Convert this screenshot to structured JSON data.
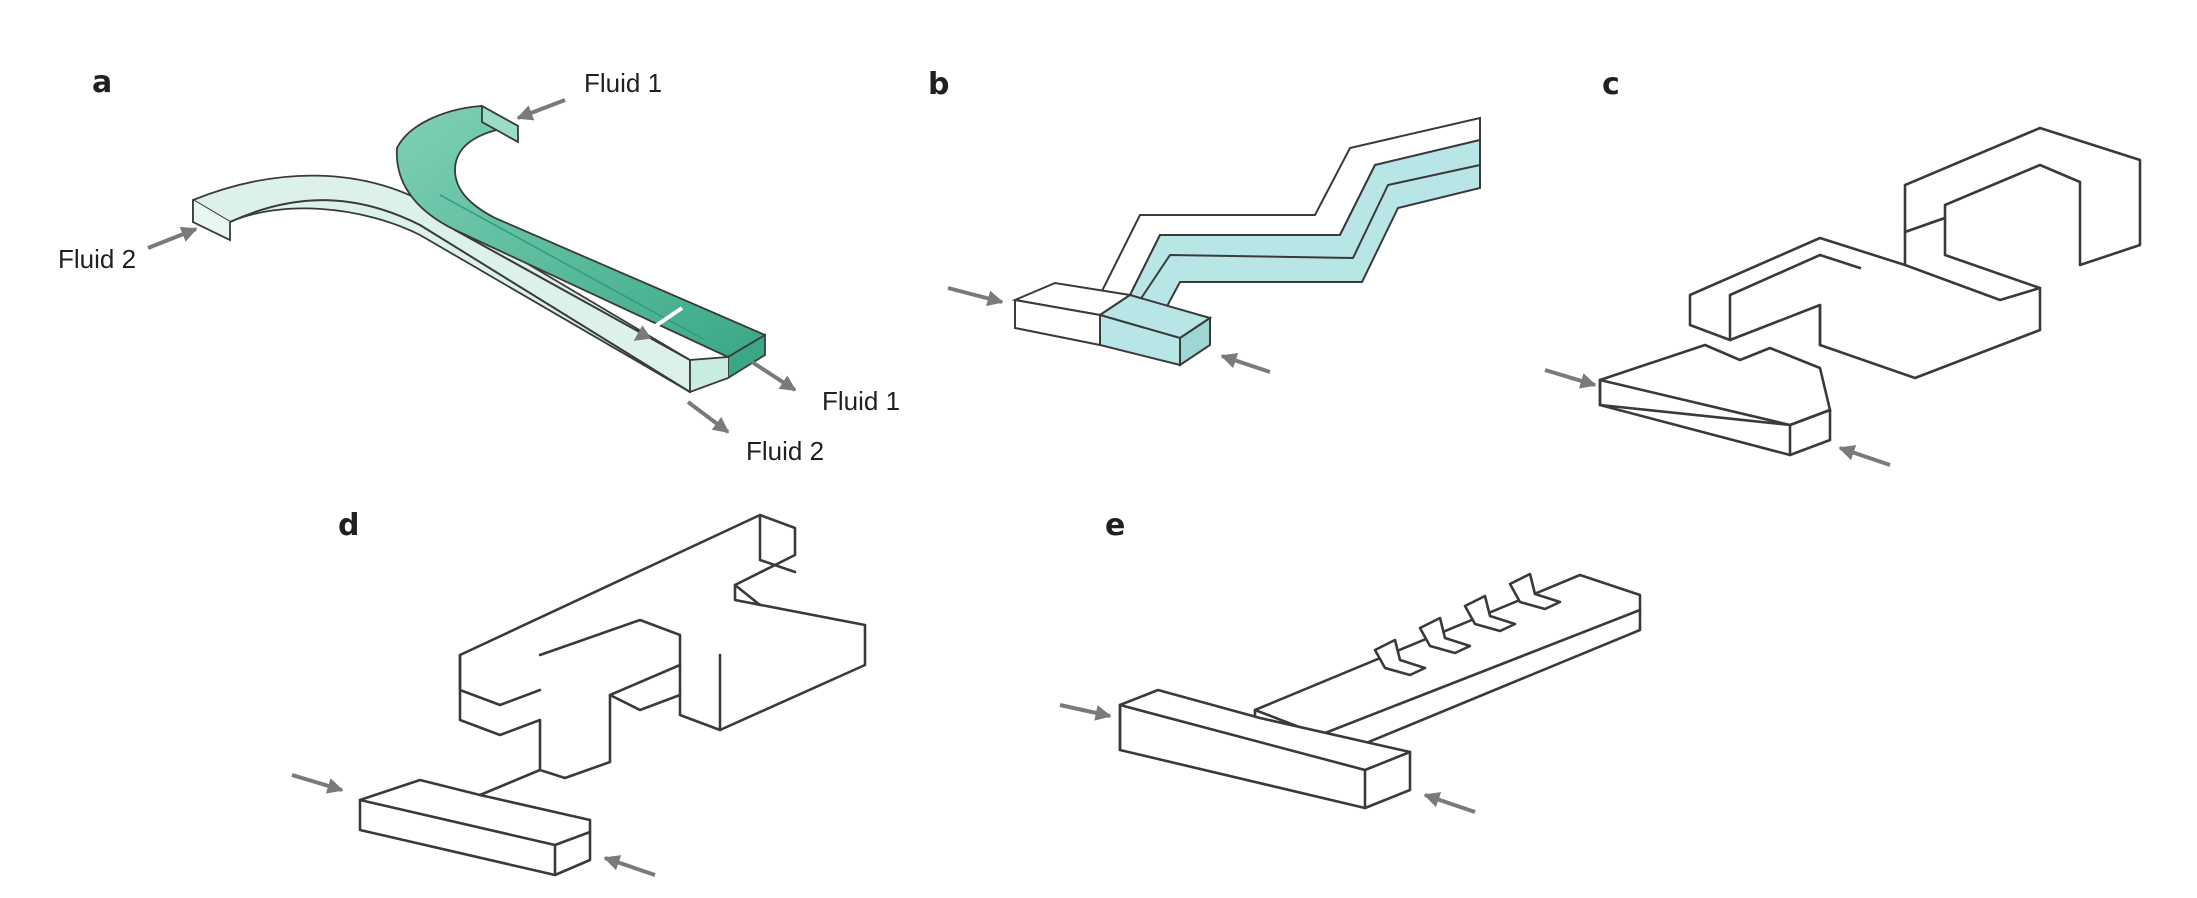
{
  "panels": {
    "a": {
      "letter": "a",
      "labels": {
        "fluid1_inlet": "Fluid 1",
        "fluid2_inlet": "Fluid 2",
        "fluid1_outlet": "Fluid 1",
        "fluid2_outlet": "Fluid 2"
      }
    },
    "b": {
      "letter": "b"
    },
    "c": {
      "letter": "c"
    },
    "d": {
      "letter": "d"
    },
    "e": {
      "letter": "e"
    }
  },
  "colors": {
    "fluid1": "#5cc0a3",
    "fluid1_dark": "#2f9c7c",
    "fluid2": "#dcf1ea",
    "panel_b_fill": "#b8e6e6",
    "arrow": "#7a7a7a",
    "outline": "#3a3a3a"
  }
}
